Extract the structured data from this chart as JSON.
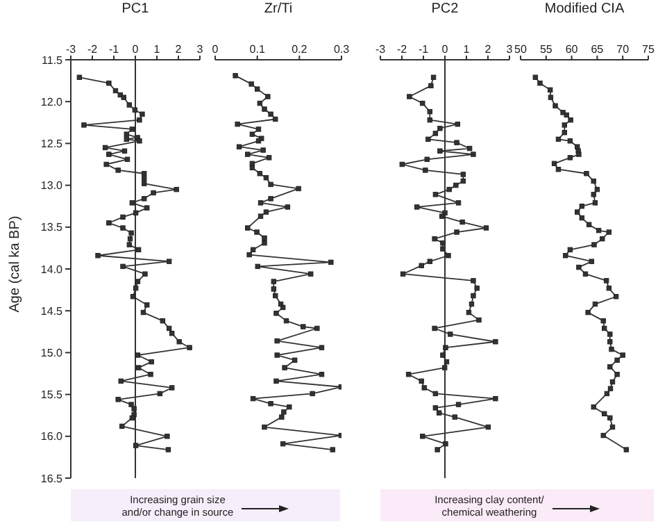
{
  "chart_data": [
    {
      "type": "line",
      "xlabel": "PC1",
      "ylabel": "Age (cal ka BP)",
      "xlim": [
        -3,
        3
      ],
      "xticks": [
        -3,
        -2,
        -1,
        0,
        1,
        2,
        3
      ],
      "ylim": [
        16.5,
        11.5
      ],
      "yticks": [
        {
          "value": 11.5,
          "label": "11.5"
        },
        {
          "value": 12,
          "label": "12.0"
        },
        {
          "value": 12.5,
          "label": "12.5"
        },
        {
          "value": 13,
          "label": "13.0"
        },
        {
          "value": 13.5,
          "label": "13.5"
        },
        {
          "value": 14,
          "label": "14.0"
        },
        {
          "value": 14.5,
          "label": "14.5"
        },
        {
          "value": 15,
          "label": "15.0"
        },
        {
          "value": 15.5,
          "label": "15.5"
        },
        {
          "value": 16,
          "label": "16.0"
        },
        {
          "value": 16.5,
          "label": "16.5"
        }
      ],
      "marker": "square",
      "grid": false,
      "ref_lines": [
        {
          "axis": "x",
          "value": 0,
          "color": "#333333"
        }
      ],
      "annotations": [
        "Increasing grain size\nand/or change in source"
      ],
      "series": [
        {
          "color": "#333333",
          "x": [
            -2.6,
            -1.23,
            -0.92,
            -0.7,
            -0.54,
            -0.28,
            -0.02,
            0.32,
            0.19,
            -2.39,
            -0.15,
            -0.41,
            0.1,
            -0.41,
            0.19,
            -1.4,
            -0.5,
            -1.23,
            -0.37,
            -1.35,
            -0.8,
            0.41,
            0.41,
            0.41,
            1.91,
            0.84,
            0.41,
            -0.15,
            0.54,
            0.02,
            -0.58,
            -1.23,
            -0.58,
            -0.19,
            -0.24,
            -0.28,
            0.15,
            -1.74,
            1.57,
            -0.58,
            0.45,
            0.11,
            0.02,
            -0.11,
            0.54,
            0.37,
            1.27,
            1.57,
            1.7,
            2.04,
            2.52,
            0.11,
            0.75,
            0.15,
            0.71,
            -0.67,
            1.7,
            1.14,
            -0.8,
            -0.19,
            -0.06,
            -0.06,
            -0.15,
            -0.62,
            1.48,
            0.02,
            1.53
          ],
          "values": [
            11.71,
            11.78,
            11.87,
            11.92,
            11.95,
            12.04,
            12.1,
            12.15,
            12.22,
            12.28,
            12.33,
            12.39,
            12.43,
            12.45,
            12.47,
            12.55,
            12.59,
            12.63,
            12.69,
            12.75,
            12.82,
            12.86,
            12.92,
            12.98,
            13.05,
            13.09,
            13.16,
            13.21,
            13.27,
            13.33,
            13.38,
            13.45,
            13.51,
            13.57,
            13.64,
            13.71,
            13.77,
            13.84,
            13.91,
            13.97,
            14.06,
            14.15,
            14.23,
            14.33,
            14.43,
            14.52,
            14.62,
            14.71,
            14.77,
            14.87,
            14.94,
            15.03,
            15.11,
            15.18,
            15.26,
            15.34,
            15.42,
            15.49,
            15.56,
            15.62,
            15.67,
            15.74,
            15.78,
            15.88,
            16.0,
            16.11,
            16.16
          ]
        }
      ]
    },
    {
      "type": "line",
      "xlabel": "Zr/Ti",
      "xlim": [
        0,
        0.3
      ],
      "xticks": [
        0,
        0.1,
        0.2,
        0.3
      ],
      "ylim": [
        16.5,
        11.5
      ],
      "tick_labels": "x",
      "marker": "square",
      "grid": false,
      "series": [
        {
          "color": "#333333",
          "x": [
            0.048,
            0.086,
            0.1,
            0.125,
            0.106,
            0.117,
            0.132,
            0.143,
            0.053,
            0.103,
            0.088,
            0.11,
            0.103,
            0.057,
            0.114,
            0.077,
            0.128,
            0.088,
            0.088,
            0.106,
            0.121,
            0.132,
            0.198,
            0.132,
            0.108,
            0.172,
            0.121,
            0.108,
            0.077,
            0.099,
            0.117,
            0.117,
            0.09,
            0.081,
            0.275,
            0.101,
            0.227,
            0.139,
            0.139,
            0.143,
            0.156,
            0.161,
            0.145,
            0.169,
            0.209,
            0.242,
            0.147,
            0.253,
            0.147,
            0.189,
            0.165,
            0.253,
            0.145,
            0.299,
            0.231,
            0.09,
            0.132,
            0.176,
            0.163,
            0.158,
            0.117,
            0.299,
            0.161,
            0.279
          ],
          "values": [
            11.69,
            11.79,
            11.85,
            11.94,
            12.02,
            12.09,
            12.15,
            12.21,
            12.27,
            12.33,
            12.39,
            12.44,
            12.47,
            12.54,
            12.58,
            12.63,
            12.67,
            12.74,
            12.79,
            12.86,
            12.91,
            12.99,
            13.04,
            13.16,
            13.21,
            13.26,
            13.32,
            13.37,
            13.51,
            13.56,
            13.63,
            13.69,
            13.77,
            13.83,
            13.92,
            13.97,
            14.06,
            14.15,
            14.24,
            14.32,
            14.42,
            14.46,
            14.53,
            14.62,
            14.69,
            14.71,
            14.86,
            14.94,
            15.03,
            15.09,
            15.18,
            15.26,
            15.34,
            15.41,
            15.49,
            15.55,
            15.61,
            15.65,
            15.71,
            15.77,
            15.89,
            15.99,
            16.09,
            16.16
          ]
        }
      ]
    },
    {
      "type": "line",
      "xlabel": "PC2",
      "xlim": [
        -3,
        3
      ],
      "xticks": [
        -3,
        -2,
        -1,
        0,
        1,
        2,
        3
      ],
      "ylim": [
        16.5,
        11.5
      ],
      "tick_labels": "x",
      "marker": "square",
      "grid": false,
      "ref_lines": [
        {
          "axis": "x",
          "value": 0,
          "color": "#333333"
        }
      ],
      "annotations": [
        "Increasing clay content/\nchemical weathering"
      ],
      "series": [
        {
          "color": "#333333",
          "x": [
            -0.53,
            -0.65,
            -1.65,
            -1.04,
            -0.7,
            -0.7,
            0.59,
            -0.23,
            -0.44,
            -0.78,
            0.55,
            1.15,
            -0.23,
            1.32,
            -0.83,
            -1.99,
            -0.91,
            0.85,
            0.85,
            0.51,
            0.2,
            -0.44,
            0.63,
            -1.3,
            0.0,
            -0.14,
            0.81,
            1.92,
            0.55,
            -0.48,
            -0.1,
            -0.1,
            0.16,
            -0.7,
            -1.09,
            -1.95,
            1.32,
            1.49,
            1.32,
            1.24,
            1.11,
            1.58,
            -0.48,
            0.25,
            2.35,
            0.03,
            -0.1,
            0.08,
            -0.01,
            -1.69,
            -1.09,
            -0.96,
            -0.44,
            2.35,
            0.63,
            -0.44,
            -0.27,
            0.46,
            2.01,
            -1.04,
            0.03,
            -0.35
          ],
          "values": [
            11.71,
            11.81,
            11.94,
            12.02,
            12.12,
            12.22,
            12.27,
            12.32,
            12.38,
            12.45,
            12.49,
            12.56,
            12.59,
            12.63,
            12.69,
            12.75,
            12.82,
            12.87,
            12.95,
            13.0,
            13.05,
            13.11,
            13.21,
            13.26,
            13.33,
            13.37,
            13.44,
            13.51,
            13.56,
            13.64,
            13.69,
            13.76,
            13.84,
            13.91,
            13.96,
            14.06,
            14.14,
            14.23,
            14.32,
            14.42,
            14.52,
            14.61,
            14.71,
            14.78,
            14.87,
            14.94,
            15.03,
            15.11,
            15.18,
            15.26,
            15.34,
            15.42,
            15.49,
            15.55,
            15.62,
            15.66,
            15.72,
            15.77,
            15.89,
            16.0,
            16.09,
            16.16
          ]
        }
      ]
    },
    {
      "type": "line",
      "xlabel": "Modified CIA",
      "xlim": [
        50,
        75
      ],
      "xticks": [
        50,
        55,
        60,
        65,
        70,
        75
      ],
      "ylim": [
        16.5,
        11.5
      ],
      "tick_labels": "x",
      "marker": "square",
      "grid": false,
      "series": [
        {
          "color": "#333333",
          "x": [
            52.9,
            53.8,
            55.8,
            55.9,
            56.8,
            58.3,
            59.0,
            59.8,
            58.6,
            58.6,
            57.4,
            59.7,
            61.1,
            61.3,
            61.4,
            59.7,
            56.6,
            57.4,
            62.9,
            64.3,
            65.0,
            64.3,
            64.6,
            62.0,
            61.1,
            62.0,
            63.4,
            65.3,
            67.3,
            66.0,
            64.4,
            59.7,
            58.8,
            63.9,
            61.4,
            62.7,
            66.8,
            67.3,
            68.7,
            64.6,
            63.2,
            66.2,
            66.4,
            67.5,
            67.5,
            67.8,
            70.0,
            68.9,
            67.5,
            68.9,
            68.0,
            67.6,
            66.9,
            64.3,
            66.4,
            67.5,
            68.0,
            66.2,
            70.7
          ],
          "values": [
            11.71,
            11.78,
            11.86,
            11.95,
            12.05,
            12.13,
            12.16,
            12.22,
            12.28,
            12.37,
            12.45,
            12.47,
            12.54,
            12.59,
            12.63,
            12.67,
            12.74,
            12.81,
            12.86,
            12.95,
            13.05,
            13.11,
            13.21,
            13.25,
            13.32,
            13.39,
            13.47,
            13.54,
            13.56,
            13.64,
            13.71,
            13.77,
            13.84,
            13.91,
            13.98,
            14.06,
            14.14,
            14.23,
            14.33,
            14.42,
            14.52,
            14.62,
            14.71,
            14.78,
            14.87,
            14.96,
            15.03,
            15.09,
            15.17,
            15.26,
            15.35,
            15.43,
            15.49,
            15.65,
            15.73,
            15.78,
            15.89,
            15.99,
            16.16
          ]
        }
      ]
    }
  ]
}
